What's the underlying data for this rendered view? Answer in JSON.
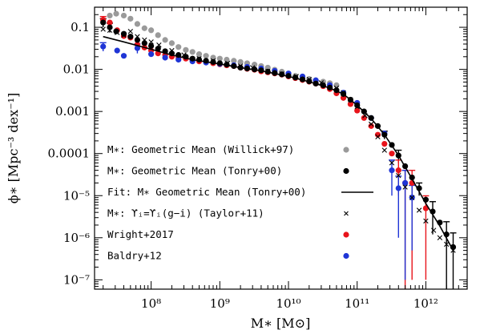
{
  "chart_data": {
    "type": "scatter",
    "xlabel": "M∗ [M⊙]",
    "ylabel": "ϕ∗ [Mpc⁻³ dex⁻¹]",
    "x_scale": "log",
    "y_scale": "log",
    "xlim": [
      15000000,
      4000000000000
    ],
    "ylim": [
      6e-08,
      0.3
    ],
    "grid": false,
    "legend_position": "center-left",
    "x_tick_labels": [
      "10⁸",
      "10⁹",
      "10¹⁰",
      "10¹¹",
      "10¹²"
    ],
    "x_tick_values": [
      100000000,
      1000000000,
      10000000000,
      100000000000,
      1000000000000
    ],
    "y_tick_labels": [
      "0.1",
      "0.01",
      "0.001",
      "0.0001",
      "10⁻⁵",
      "10⁻⁶",
      "10⁻⁷"
    ],
    "y_tick_values": [
      0.1,
      0.01,
      0.001,
      0.0001,
      1e-05,
      1e-06,
      1e-07
    ],
    "series": [
      {
        "name": "M∗: Geometric Mean (Willick+97)",
        "marker": "circle",
        "color": "#9a9a9a",
        "points": [
          [
            20000000,
            0.14
          ],
          [
            25000000,
            0.19
          ],
          [
            31000000,
            0.21
          ],
          [
            40000000,
            0.19
          ],
          [
            50000000,
            0.16
          ],
          [
            63000000,
            0.12
          ],
          [
            80000000,
            0.095
          ],
          [
            100000000,
            0.085
          ],
          [
            126000000,
            0.065
          ],
          [
            160000000,
            0.05
          ],
          [
            200000000,
            0.042
          ],
          [
            250000000,
            0.034
          ],
          [
            320000000,
            0.029
          ],
          [
            400000000,
            0.026
          ],
          [
            500000000,
            0.023
          ],
          [
            630000000,
            0.021
          ],
          [
            800000000,
            0.019
          ],
          [
            1000000000,
            0.018
          ],
          [
            1260000000,
            0.017
          ],
          [
            1600000000,
            0.016
          ],
          [
            2000000000,
            0.015
          ],
          [
            2500000000,
            0.014
          ],
          [
            3200000000,
            0.013
          ],
          [
            4000000000,
            0.012
          ],
          [
            5000000000,
            0.011
          ],
          [
            6300000000,
            0.0098
          ],
          [
            8000000000,
            0.0088
          ],
          [
            10000000000,
            0.0078
          ],
          [
            12600000000,
            0.007
          ],
          [
            16000000000,
            0.0064
          ],
          [
            20000000000,
            0.0059
          ],
          [
            25000000000,
            0.0055
          ],
          [
            32000000000,
            0.0051
          ],
          [
            40000000000,
            0.0047
          ],
          [
            50000000000,
            0.0042
          ]
        ]
      },
      {
        "name": "M∗:  Geometric Mean (Tonry+00)",
        "marker": "circle",
        "color": "#000000",
        "points": [
          [
            20000000,
            0.13
          ],
          [
            25000000,
            0.1
          ],
          [
            31000000,
            0.08
          ],
          [
            40000000,
            0.07
          ],
          [
            50000000,
            0.06
          ],
          [
            63000000,
            0.05
          ],
          [
            80000000,
            0.042
          ],
          [
            100000000,
            0.036
          ],
          [
            126000000,
            0.031
          ],
          [
            160000000,
            0.027
          ],
          [
            200000000,
            0.024
          ],
          [
            250000000,
            0.022
          ],
          [
            320000000,
            0.02
          ],
          [
            400000000,
            0.018
          ],
          [
            500000000,
            0.017
          ],
          [
            630000000,
            0.016
          ],
          [
            800000000,
            0.015
          ],
          [
            1000000000,
            0.014
          ],
          [
            1260000000,
            0.013
          ],
          [
            1600000000,
            0.012
          ],
          [
            2000000000,
            0.011
          ],
          [
            2500000000,
            0.0105
          ],
          [
            3200000000,
            0.01
          ],
          [
            4000000000,
            0.0095
          ],
          [
            5000000000,
            0.0088
          ],
          [
            6300000000,
            0.0082
          ],
          [
            8000000000,
            0.0076
          ],
          [
            10000000000,
            0.007
          ],
          [
            12600000000,
            0.0064
          ],
          [
            16000000000,
            0.0058
          ],
          [
            20000000000,
            0.0052
          ],
          [
            25000000000,
            0.0046
          ],
          [
            32000000000,
            0.0042
          ],
          [
            40000000000,
            0.0037
          ],
          [
            50000000000,
            0.0032
          ],
          [
            63000000000,
            0.0026
          ],
          [
            80000000000,
            0.0019
          ],
          [
            100000000000,
            0.0014
          ],
          [
            126000000000,
            0.001
          ],
          [
            160000000000,
            0.0007
          ],
          [
            200000000000,
            0.00045
          ],
          [
            250000000000,
            0.00028
          ],
          [
            320000000000,
            0.00016
          ],
          [
            400000000000,
            9e-05
          ],
          [
            500000000000,
            5e-05
          ],
          [
            630000000000,
            2.7e-05
          ],
          [
            800000000000,
            1.5e-05
          ],
          [
            1000000000000,
            8e-06
          ],
          [
            1260000000000,
            4.2e-06
          ],
          [
            1600000000000,
            2.3e-06
          ],
          [
            2000000000000,
            1.2e-06
          ],
          [
            2500000000000,
            6e-07
          ]
        ],
        "errors": [
          [
            0,
            0.03
          ],
          [
            1,
            0.025
          ],
          [
            41,
            6e-05
          ],
          [
            43,
            3e-05
          ],
          [
            46,
            5e-06
          ],
          [
            48,
            3e-06
          ],
          [
            50,
            1.2e-06
          ],
          [
            51,
            7e-07
          ]
        ]
      },
      {
        "name": "Fit: M∗ Geometric Mean (Tonry+00)",
        "marker": "line",
        "color": "#000000",
        "points": [
          [
            20000000,
            0.06
          ],
          [
            40000000,
            0.045
          ],
          [
            100000000,
            0.03
          ],
          [
            200000000,
            0.022
          ],
          [
            400000000,
            0.017
          ],
          [
            1000000000,
            0.0135
          ],
          [
            2000000000,
            0.011
          ],
          [
            4000000000,
            0.0093
          ],
          [
            10000000000,
            0.0068
          ],
          [
            20000000000,
            0.0051
          ],
          [
            40000000000,
            0.0036
          ],
          [
            63000000000,
            0.0026
          ],
          [
            100000000000,
            0.0014
          ],
          [
            160000000000,
            0.00068
          ],
          [
            250000000000,
            0.00028
          ],
          [
            400000000000,
            9e-05
          ],
          [
            630000000000,
            2.5e-05
          ],
          [
            1000000000000,
            6.5e-06
          ],
          [
            1600000000000,
            1.9e-06
          ],
          [
            2500000000000,
            5e-07
          ]
        ]
      },
      {
        "name": "M∗: ϒᵢ=ϒᵢ(g−i) (Taylor+11)",
        "marker": "cross",
        "color": "#000000",
        "points": [
          [
            20000000,
            0.09
          ],
          [
            25000000,
            0.085
          ],
          [
            32000000,
            0.075
          ],
          [
            40000000,
            0.065
          ],
          [
            50000000,
            0.08
          ],
          [
            63000000,
            0.06
          ],
          [
            80000000,
            0.05
          ],
          [
            100000000,
            0.045
          ],
          [
            130000000,
            0.038
          ],
          [
            200000000,
            0.028
          ],
          [
            300000000,
            0.022
          ],
          [
            500000000,
            0.018
          ],
          [
            800000000,
            0.016
          ],
          [
            1300000000,
            0.014
          ],
          [
            2000000000,
            0.012
          ],
          [
            3000000000,
            0.011
          ],
          [
            5000000000,
            0.009
          ],
          [
            8000000000,
            0.0078
          ],
          [
            13000000000,
            0.0068
          ],
          [
            20000000000,
            0.0058
          ],
          [
            30000000000,
            0.0048
          ],
          [
            50000000000,
            0.0036
          ],
          [
            63000000000,
            0.0028
          ],
          [
            80000000000,
            0.0019
          ],
          [
            100000000000,
            0.0013
          ],
          [
            130000000000,
            0.0008
          ],
          [
            160000000000,
            0.0005
          ],
          [
            200000000000,
            0.00025
          ],
          [
            250000000000,
            0.00012
          ],
          [
            320000000000,
            6e-05
          ],
          [
            400000000000,
            3e-05
          ],
          [
            500000000000,
            1.6e-05
          ],
          [
            630000000000,
            9e-06
          ],
          [
            800000000000,
            4.5e-06
          ],
          [
            1000000000000,
            2.5e-06
          ],
          [
            1300000000000,
            1.5e-06
          ],
          [
            1600000000000,
            1e-06
          ],
          [
            2000000000000,
            7e-07
          ],
          [
            2500000000000,
            5e-07
          ]
        ]
      },
      {
        "name": "Wright+2017",
        "marker": "circle",
        "color": "#e8141b",
        "points": [
          [
            20000000,
            0.15
          ],
          [
            25000000,
            0.13
          ],
          [
            32000000,
            0.085
          ],
          [
            40000000,
            0.062
          ],
          [
            50000000,
            0.057
          ],
          [
            63000000,
            0.039
          ],
          [
            80000000,
            0.033
          ],
          [
            100000000,
            0.028
          ],
          [
            126000000,
            0.024
          ],
          [
            160000000,
            0.022
          ],
          [
            200000000,
            0.02
          ],
          [
            250000000,
            0.019
          ],
          [
            320000000,
            0.018
          ],
          [
            400000000,
            0.0165
          ],
          [
            500000000,
            0.0155
          ],
          [
            630000000,
            0.015
          ],
          [
            800000000,
            0.014
          ],
          [
            1000000000,
            0.0132
          ],
          [
            1260000000,
            0.0125
          ],
          [
            1600000000,
            0.012
          ],
          [
            2000000000,
            0.011
          ],
          [
            2500000000,
            0.0103
          ],
          [
            3200000000,
            0.0098
          ],
          [
            4000000000,
            0.009
          ],
          [
            5000000000,
            0.0085
          ],
          [
            6300000000,
            0.008
          ],
          [
            8000000000,
            0.0075
          ],
          [
            10000000000,
            0.0068
          ],
          [
            12600000000,
            0.0062
          ],
          [
            16000000000,
            0.0056
          ],
          [
            20000000000,
            0.0051
          ],
          [
            25000000000,
            0.0046
          ],
          [
            32000000000,
            0.004
          ],
          [
            40000000000,
            0.0034
          ],
          [
            50000000000,
            0.0027
          ],
          [
            63000000000,
            0.0021
          ],
          [
            80000000000,
            0.0015
          ],
          [
            100000000000,
            0.00105
          ],
          [
            126000000000,
            0.0007
          ],
          [
            160000000000,
            0.00045
          ],
          [
            200000000000,
            0.00028
          ],
          [
            250000000000,
            0.00017
          ],
          [
            320000000000,
            0.0001
          ],
          [
            400000000000,
            4e-05
          ],
          [
            500000000000,
            2e-05
          ],
          [
            630000000000,
            2e-05
          ],
          [
            1000000000000,
            5e-06
          ]
        ],
        "errors": [
          [
            0,
            0.03
          ],
          [
            43,
            3e-05
          ],
          [
            44,
            2e-05
          ],
          [
            45,
            1.99e-05
          ],
          [
            46,
            4.9e-06
          ]
        ]
      },
      {
        "name": "Baldry+12",
        "marker": "circle",
        "color": "#1f35d6",
        "points": [
          [
            20000000,
            0.035
          ],
          [
            32000000,
            0.028
          ],
          [
            40000000,
            0.021
          ],
          [
            63000000,
            0.032
          ],
          [
            100000000,
            0.023
          ],
          [
            160000000,
            0.019
          ],
          [
            250000000,
            0.017
          ],
          [
            400000000,
            0.0155
          ],
          [
            630000000,
            0.0145
          ],
          [
            1000000000,
            0.0135
          ],
          [
            1600000000,
            0.0125
          ],
          [
            2500000000,
            0.0115
          ],
          [
            4000000000,
            0.0105
          ],
          [
            6300000000,
            0.0092
          ],
          [
            10000000000,
            0.008
          ],
          [
            16000000000,
            0.0068
          ],
          [
            25000000000,
            0.0055
          ],
          [
            40000000000,
            0.0042
          ],
          [
            63000000000,
            0.0028
          ],
          [
            100000000000,
            0.0016
          ],
          [
            160000000000,
            0.0007
          ],
          [
            250000000000,
            0.0003
          ],
          [
            320000000000,
            4e-05
          ],
          [
            400000000000,
            1.5e-05
          ],
          [
            500000000000,
            2e-05
          ],
          [
            630000000000,
            9e-06
          ]
        ],
        "errors": [
          [
            0,
            0.008
          ],
          [
            3,
            0.008
          ],
          [
            22,
            3e-05
          ],
          [
            23,
            1.4e-05
          ],
          [
            24,
            1.99e-05
          ],
          [
            25,
            8.5e-06
          ]
        ]
      }
    ]
  }
}
